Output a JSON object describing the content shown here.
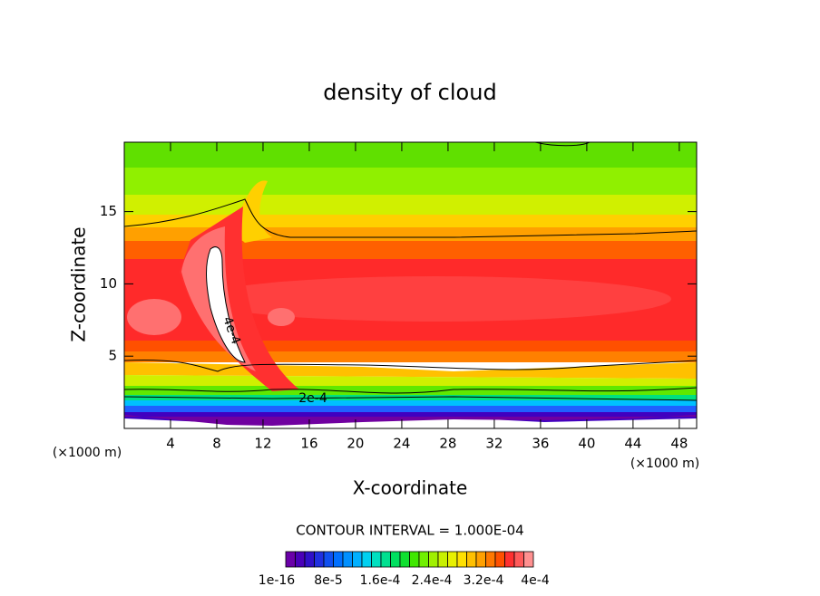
{
  "chart_data": {
    "type": "contour",
    "title": "density of cloud",
    "xlabel": "X-coordinate",
    "ylabel": "Z-coordinate",
    "x_unit": "(×1000 m)",
    "y_unit": "(×1000 m)",
    "xlim": [
      0,
      49.5
    ],
    "ylim": [
      0,
      19.8
    ],
    "xticks": [
      4,
      8,
      12,
      16,
      20,
      24,
      28,
      32,
      36,
      40,
      44,
      48
    ],
    "yticks": [
      5,
      10,
      15
    ],
    "contour_labels": [
      "4e-4",
      "2e-4"
    ],
    "contour_interval": "CONTOUR INTERVAL = 1.000E-04",
    "colorbar": {
      "colors": [
        "#6a00a8",
        "#4a00b8",
        "#3010c8",
        "#2030e0",
        "#1050f0",
        "#0070ff",
        "#0090ff",
        "#00b0ff",
        "#00d0f0",
        "#00e0c0",
        "#00e090",
        "#00e060",
        "#10e030",
        "#40e800",
        "#70f000",
        "#a0f000",
        "#c8f000",
        "#e8f000",
        "#ffe000",
        "#ffc000",
        "#ffa000",
        "#ff7800",
        "#ff5000",
        "#ff3030",
        "#ff5a5a",
        "#ff9090"
      ],
      "labels": [
        1e-16,
        {
          "value": 8e-05,
          "label": "8e-5"
        },
        {
          "value": 0.00016,
          "label": "1.6e-4"
        },
        {
          "value": 0.00024,
          "label": "2.4e-4"
        },
        {
          "value": 0.00032,
          "label": "3.2e-4"
        },
        {
          "value": 0.0004,
          "label": "4e-4"
        }
      ]
    }
  }
}
